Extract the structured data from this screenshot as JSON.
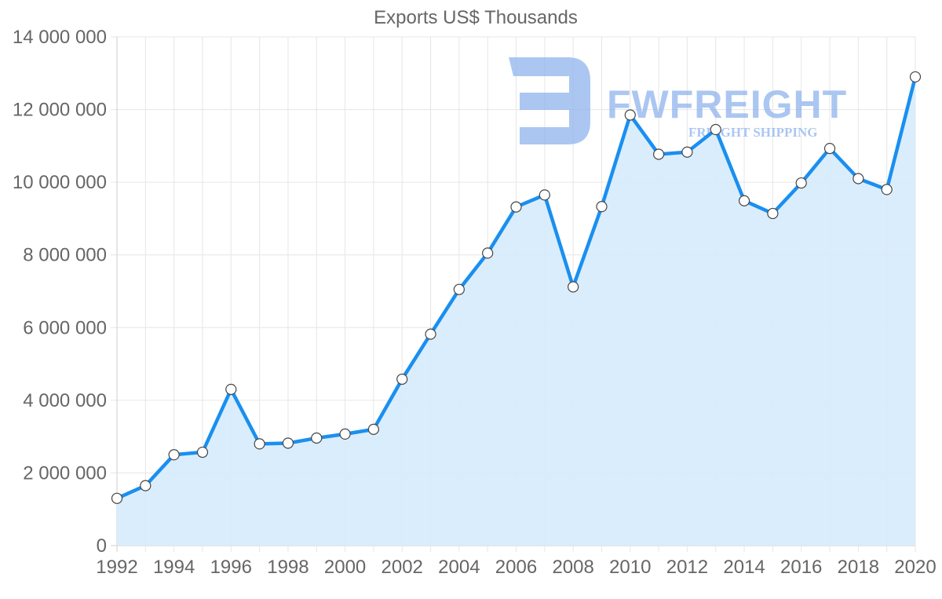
{
  "chart_data": {
    "type": "area",
    "title": "Exports US$ Thousands",
    "xlabel": "",
    "ylabel": "",
    "x": [
      1992,
      1993,
      1994,
      1995,
      1996,
      1997,
      1998,
      1999,
      2000,
      2001,
      2002,
      2003,
      2004,
      2005,
      2006,
      2007,
      2008,
      2009,
      2010,
      2011,
      2012,
      2013,
      2014,
      2015,
      2016,
      2017,
      2018,
      2019,
      2020
    ],
    "series": [
      {
        "name": "Exports US$ Thousands",
        "values": [
          1300000,
          1650000,
          2500000,
          2570000,
          4300000,
          2800000,
          2820000,
          2960000,
          3070000,
          3200000,
          4580000,
          5820000,
          7050000,
          8050000,
          9320000,
          9650000,
          7120000,
          9330000,
          11850000,
          10770000,
          10830000,
          11450000,
          9490000,
          9140000,
          9980000,
          10930000,
          10100000,
          9800000,
          12900000
        ],
        "color": "#1a8ff0",
        "fill": "#d6ebfc"
      }
    ],
    "ylim": [
      0,
      14000000
    ],
    "yticks": [
      "0",
      "2 000 000",
      "4 000 000",
      "6 000 000",
      "8 000 000",
      "10 000 000",
      "12 000 000",
      "14 000 000"
    ],
    "xticks": [
      "1992",
      "1994",
      "1996",
      "1998",
      "2000",
      "2002",
      "2004",
      "2006",
      "2008",
      "2010",
      "2012",
      "2014",
      "2016",
      "2018",
      "2020"
    ],
    "grid": true,
    "legend": "none"
  },
  "watermark": {
    "brand": "FWFREIGHT",
    "tagline": "FREIGHT SHIPPING",
    "color": "#8fb3ec"
  }
}
